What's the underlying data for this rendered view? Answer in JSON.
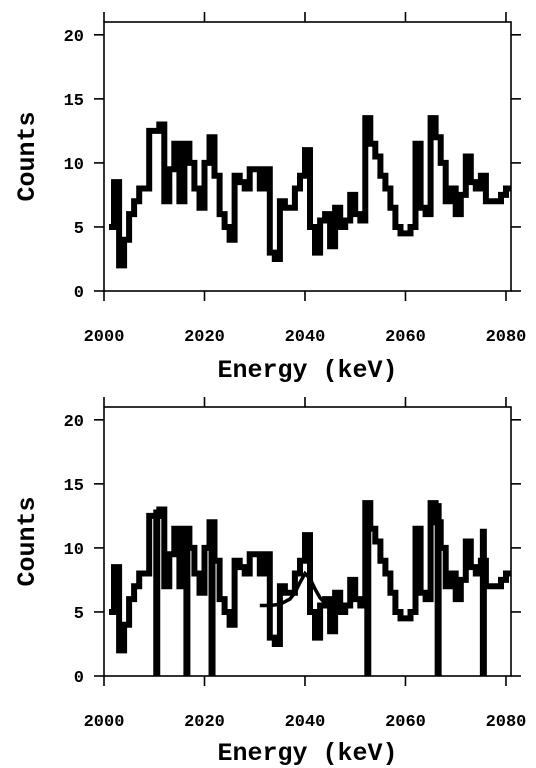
{
  "chart_data": [
    {
      "type": "line",
      "step": true,
      "xlabel": "Energy (keV)",
      "ylabel": "Counts",
      "xlim": [
        2000,
        2081
      ],
      "ylim": [
        0,
        21
      ],
      "xticks": [
        2000,
        2020,
        2040,
        2060,
        2080
      ],
      "yticks": [
        0,
        5,
        10,
        15,
        20
      ],
      "grid": false,
      "series": [
        {
          "style": "step",
          "x": [
            2001,
            2002,
            2003,
            2004,
            2005,
            2006,
            2007,
            2008,
            2009,
            2010,
            2011,
            2012,
            2013,
            2014,
            2015,
            2016,
            2017,
            2018,
            2019,
            2020,
            2021,
            2022,
            2023,
            2024,
            2025,
            2026,
            2027,
            2028,
            2029,
            2030,
            2031,
            2032,
            2033,
            2034,
            2035,
            2036,
            2037,
            2038,
            2039,
            2040,
            2041,
            2042,
            2043,
            2044,
            2045,
            2046,
            2047,
            2048,
            2049,
            2050,
            2051,
            2052,
            2053,
            2054,
            2055,
            2056,
            2057,
            2058,
            2059,
            2060,
            2061,
            2062,
            2063,
            2064,
            2065,
            2066,
            2067,
            2068,
            2069,
            2070,
            2071,
            2072,
            2073,
            2074,
            2075,
            2076,
            2077,
            2078,
            2079,
            2080
          ],
          "y": [
            5,
            8.5,
            2,
            4,
            6,
            7,
            8,
            8,
            12.5,
            12.5,
            13,
            7,
            9.5,
            11.5,
            7,
            11.5,
            10,
            8,
            6.5,
            10,
            12,
            9,
            6,
            5,
            4,
            9,
            8.5,
            8,
            9.5,
            9.5,
            8,
            9.5,
            3,
            2.5,
            7,
            6.5,
            6.5,
            8,
            9,
            11,
            5,
            3,
            5.5,
            6,
            3.5,
            6.5,
            5,
            5.5,
            7.5,
            6,
            5.5,
            13.5,
            11.5,
            10.5,
            9,
            8,
            6.5,
            5,
            4.5,
            4.5,
            5,
            11.5,
            6.5,
            6,
            13.5,
            12,
            10,
            7,
            8,
            6,
            7.5,
            10.5,
            8.5,
            8,
            9,
            7,
            7,
            7,
            7.5,
            8
          ]
        }
      ]
    },
    {
      "type": "line",
      "step": true,
      "xlabel": "Energy (keV)",
      "ylabel": "Counts",
      "xlim": [
        2000,
        2081
      ],
      "ylim": [
        0,
        21
      ],
      "xticks": [
        2000,
        2020,
        2040,
        2060,
        2080
      ],
      "yticks": [
        0,
        5,
        10,
        15,
        20
      ],
      "grid": false,
      "series": [
        {
          "style": "step",
          "x": [
            2001,
            2002,
            2003,
            2004,
            2005,
            2006,
            2007,
            2008,
            2009,
            2010,
            2011,
            2012,
            2013,
            2014,
            2015,
            2016,
            2017,
            2018,
            2019,
            2020,
            2021,
            2022,
            2023,
            2024,
            2025,
            2026,
            2027,
            2028,
            2029,
            2030,
            2031,
            2032,
            2033,
            2034,
            2035,
            2036,
            2037,
            2038,
            2039,
            2040,
            2041,
            2042,
            2043,
            2044,
            2045,
            2046,
            2047,
            2048,
            2049,
            2050,
            2051,
            2052,
            2053,
            2054,
            2055,
            2056,
            2057,
            2058,
            2059,
            2060,
            2061,
            2062,
            2063,
            2064,
            2065,
            2066,
            2067,
            2068,
            2069,
            2070,
            2071,
            2072,
            2073,
            2074,
            2075,
            2076,
            2077,
            2078,
            2079,
            2080
          ],
          "y": [
            5,
            8.5,
            2,
            4,
            6,
            7,
            8,
            8,
            12.5,
            12.5,
            13,
            7,
            9.5,
            11.5,
            7,
            11.5,
            10,
            8,
            6.5,
            10,
            12,
            9,
            6,
            5,
            4,
            9,
            8.5,
            8,
            9.5,
            9.5,
            8,
            9.5,
            3,
            2.5,
            7,
            6.5,
            6.5,
            8,
            9,
            11,
            5,
            3,
            5.5,
            6,
            3.5,
            6.5,
            5,
            5.5,
            7.5,
            6,
            5.5,
            13.5,
            11.5,
            10.5,
            9,
            8,
            6.5,
            5,
            4.5,
            4.5,
            5,
            11.5,
            6.5,
            6,
            13.5,
            12,
            10,
            7,
            8,
            6,
            7.5,
            10.5,
            8.5,
            8,
            9,
            7,
            7,
            7,
            7.5,
            8
          ]
        },
        {
          "style": "curve",
          "x": [
            2031,
            2033,
            2035,
            2037,
            2038,
            2039,
            2040,
            2041,
            2042,
            2043,
            2044,
            2045,
            2047,
            2049
          ],
          "y": [
            5.5,
            5.5,
            5.6,
            6,
            6.5,
            7.3,
            8,
            7.6,
            6.8,
            6.1,
            5.7,
            5.6,
            5.5,
            5.5
          ]
        },
        {
          "style": "spikes",
          "x": [
            2010.5,
            2016.5,
            2021.5,
            2052.5,
            2066.5,
            2075.5
          ],
          "y": [
            0,
            0,
            0,
            0,
            0,
            0
          ],
          "y_top": [
            13,
            11.5,
            12,
            13.5,
            13.5,
            11.5
          ]
        }
      ]
    }
  ]
}
